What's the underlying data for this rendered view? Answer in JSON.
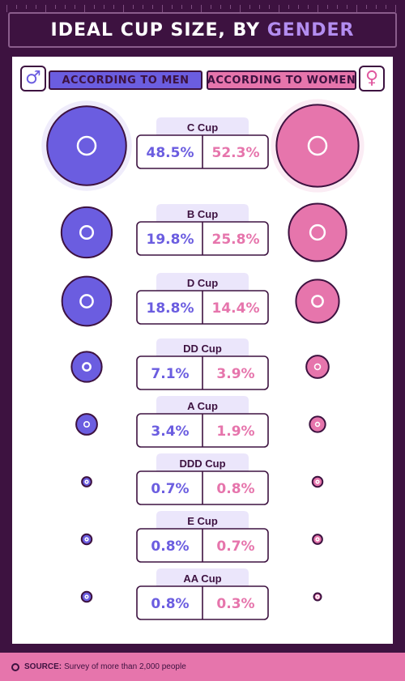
{
  "title": {
    "main": "IDEAL CUP SIZE, BY ",
    "accent": "GENDER"
  },
  "legend": {
    "men": "ACCORDING TO MEN",
    "women": "ACCORDING TO WOMEN",
    "male_symbol": "♂",
    "female_symbol": "♀"
  },
  "colors": {
    "men": "#6b5de0",
    "women": "#e675ac",
    "dark": "#3d1240",
    "label_bg": "#ebe6fb"
  },
  "footer": {
    "label": "SOURCE:",
    "text": "Survey of more than 2,000 people"
  },
  "chart_data": {
    "type": "bubble",
    "unit": "%",
    "categories": [
      "C Cup",
      "B Cup",
      "D Cup",
      "DD Cup",
      "A Cup",
      "DDD Cup",
      "E Cup",
      "AA Cup"
    ],
    "series": [
      {
        "name": "ACCORDING TO MEN",
        "values": [
          48.5,
          19.8,
          18.8,
          7.1,
          3.4,
          0.7,
          0.8,
          0.8
        ]
      },
      {
        "name": "ACCORDING TO WOMEN",
        "values": [
          52.3,
          25.8,
          14.4,
          3.9,
          1.9,
          0.8,
          0.7,
          0.3
        ]
      }
    ]
  }
}
